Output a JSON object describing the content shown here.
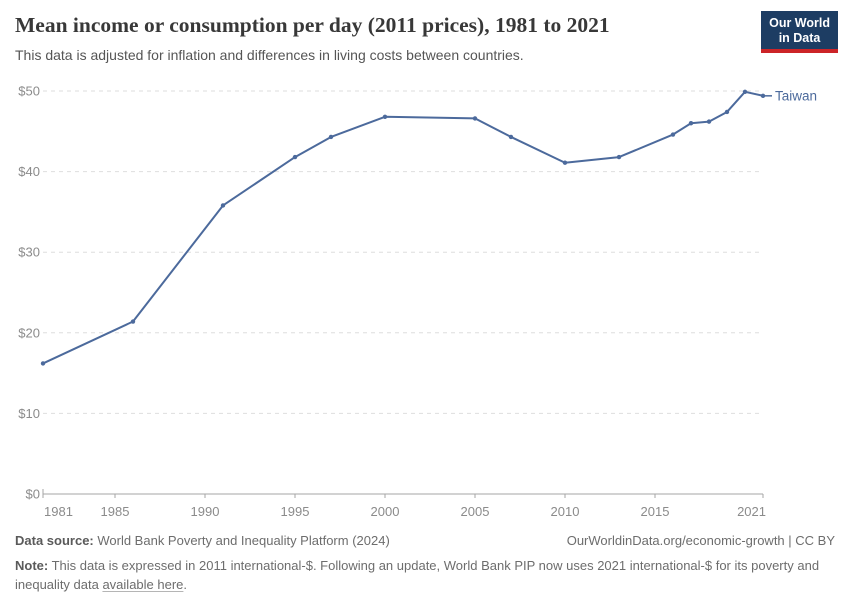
{
  "header": {
    "title": "Mean income or consumption per day (2011 prices), 1981 to 2021",
    "subtitle": "This data is adjusted for inflation and differences in living costs between countries."
  },
  "logo": {
    "line1": "Our World",
    "line2": "in Data",
    "bg_color": "#1d3d63",
    "bar_color": "#cc2428"
  },
  "chart_data": {
    "type": "line",
    "title": "Mean income or consumption per day (2011 prices), 1981 to 2021",
    "subtitle": "This data is adjusted for inflation and differences in living costs between countries.",
    "xlabel": "",
    "ylabel": "",
    "xlim": [
      1981,
      2021
    ],
    "ylim": [
      0,
      50
    ],
    "x_ticks": [
      1981,
      1985,
      1990,
      1995,
      2000,
      2005,
      2010,
      2015,
      2021
    ],
    "y_ticks": [
      0,
      10,
      20,
      30,
      40,
      50
    ],
    "y_tick_prefix": "$",
    "grid": "horizontal-dashed",
    "legend_position": "end-of-line-label",
    "series": [
      {
        "name": "Taiwan",
        "color": "#4c6a9c",
        "x": [
          1981,
          1986,
          1991,
          1995,
          1997,
          2000,
          2005,
          2007,
          2010,
          2013,
          2016,
          2017,
          2018,
          2019,
          2020,
          2021
        ],
        "values": [
          16.2,
          21.4,
          35.8,
          41.8,
          44.3,
          46.8,
          46.6,
          44.3,
          41.1,
          41.8,
          44.6,
          46.0,
          46.2,
          47.4,
          49.9,
          49.4
        ]
      }
    ],
    "colors": {
      "grid": "#dedede",
      "axis": "#a5a5a5",
      "tick_text": "#8b8b8b"
    }
  },
  "footer": {
    "source_label": "Data source:",
    "source_text": " World Bank Poverty and Inequality Platform (2024)",
    "attribution": "OurWorldinData.org/economic-growth | CC BY",
    "note_label": "Note:",
    "note_text": " This data is expressed in 2011 international-$. Following an update, World Bank PIP now uses 2021 international-$ for its poverty and inequality data ",
    "note_link": "available here",
    "note_suffix": "."
  }
}
